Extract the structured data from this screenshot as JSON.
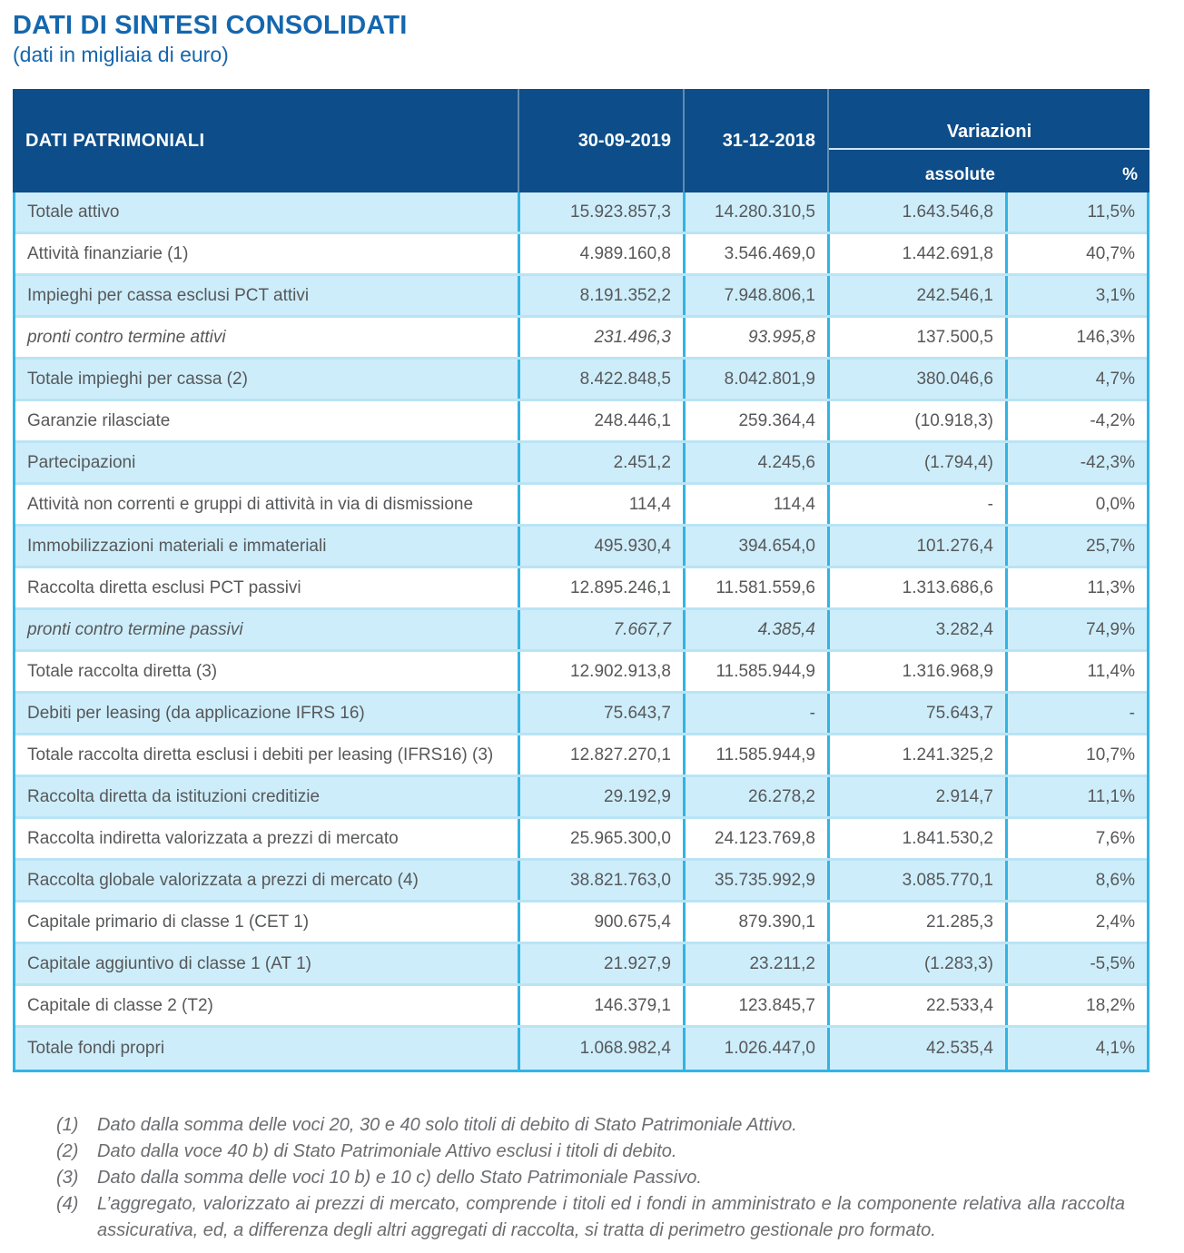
{
  "page": {
    "title": "DATI DI SINTESI CONSOLIDATI",
    "subtitle": "(dati in migliaia di euro)"
  },
  "table": {
    "header": {
      "label": "DATI PATRIMONIALI",
      "col_2019": "30-09-2019",
      "col_2018": "31-12-2018",
      "variazioni": "Variazioni",
      "assolute": "assolute",
      "percent": "%"
    },
    "rows": [
      {
        "label": "Totale attivo",
        "v2019": "15.923.857,3",
        "v2018": "14.280.310,5",
        "assolute": "1.643.546,8",
        "pct": "11,5%",
        "italic": false
      },
      {
        "label": "Attività finanziarie (1)",
        "v2019": "4.989.160,8",
        "v2018": "3.546.469,0",
        "assolute": "1.442.691,8",
        "pct": "40,7%",
        "italic": false
      },
      {
        "label": "Impieghi per cassa esclusi PCT attivi",
        "v2019": "8.191.352,2",
        "v2018": "7.948.806,1",
        "assolute": "242.546,1",
        "pct": "3,1%",
        "italic": false
      },
      {
        "label": "pronti contro termine attivi",
        "v2019": "231.496,3",
        "v2018": "93.995,8",
        "assolute": "137.500,5",
        "pct": "146,3%",
        "italic": true
      },
      {
        "label": "Totale impieghi per cassa (2)",
        "v2019": "8.422.848,5",
        "v2018": "8.042.801,9",
        "assolute": "380.046,6",
        "pct": "4,7%",
        "italic": false
      },
      {
        "label": "Garanzie rilasciate",
        "v2019": "248.446,1",
        "v2018": "259.364,4",
        "assolute": "(10.918,3)",
        "pct": "-4,2%",
        "italic": false
      },
      {
        "label": "Partecipazioni",
        "v2019": "2.451,2",
        "v2018": "4.245,6",
        "assolute": "(1.794,4)",
        "pct": "-42,3%",
        "italic": false
      },
      {
        "label": "Attività non correnti e gruppi di attività in via di dismissione",
        "v2019": "114,4",
        "v2018": "114,4",
        "assolute": "-",
        "pct": "0,0%",
        "italic": false
      },
      {
        "label": "Immobilizzazioni materiali e immateriali",
        "v2019": "495.930,4",
        "v2018": "394.654,0",
        "assolute": "101.276,4",
        "pct": "25,7%",
        "italic": false
      },
      {
        "label": "Raccolta diretta esclusi PCT passivi",
        "v2019": "12.895.246,1",
        "v2018": "11.581.559,6",
        "assolute": "1.313.686,6",
        "pct": "11,3%",
        "italic": false
      },
      {
        "label": "pronti contro termine passivi",
        "v2019": "7.667,7",
        "v2018": "4.385,4",
        "assolute": "3.282,4",
        "pct": "74,9%",
        "italic": true
      },
      {
        "label": "Totale raccolta diretta (3)",
        "v2019": "12.902.913,8",
        "v2018": "11.585.944,9",
        "assolute": "1.316.968,9",
        "pct": "11,4%",
        "italic": false
      },
      {
        "label": "Debiti per leasing (da applicazione IFRS 16)",
        "v2019": "75.643,7",
        "v2018": "-",
        "assolute": "75.643,7",
        "pct": "-",
        "italic": false
      },
      {
        "label": "Totale raccolta diretta esclusi i debiti per leasing (IFRS16) (3)",
        "v2019": "12.827.270,1",
        "v2018": "11.585.944,9",
        "assolute": "1.241.325,2",
        "pct": "10,7%",
        "italic": false
      },
      {
        "label": "Raccolta diretta da istituzioni creditizie",
        "v2019": "29.192,9",
        "v2018": "26.278,2",
        "assolute": "2.914,7",
        "pct": "11,1%",
        "italic": false
      },
      {
        "label": "Raccolta indiretta valorizzata a prezzi di mercato",
        "v2019": "25.965.300,0",
        "v2018": "24.123.769,8",
        "assolute": "1.841.530,2",
        "pct": "7,6%",
        "italic": false
      },
      {
        "label": "Raccolta globale valorizzata a prezzi di mercato (4)",
        "v2019": "38.821.763,0",
        "v2018": "35.735.992,9",
        "assolute": "3.085.770,1",
        "pct": "8,6%",
        "italic": false
      },
      {
        "label": "Capitale primario di classe 1 (CET 1)",
        "v2019": "900.675,4",
        "v2018": "879.390,1",
        "assolute": "21.285,3",
        "pct": "2,4%",
        "italic": false
      },
      {
        "label": "Capitale aggiuntivo di classe 1 (AT 1)",
        "v2019": "21.927,9",
        "v2018": "23.211,2",
        "assolute": "(1.283,3)",
        "pct": "-5,5%",
        "italic": false
      },
      {
        "label": "Capitale di classe 2 (T2)",
        "v2019": "146.379,1",
        "v2018": "123.845,7",
        "assolute": "22.533,4",
        "pct": "18,2%",
        "italic": false
      },
      {
        "label": "Totale fondi propri",
        "v2019": "1.068.982,4",
        "v2018": "1.026.447,0",
        "assolute": "42.535,4",
        "pct": "4,1%",
        "italic": false
      }
    ]
  },
  "footnotes": [
    {
      "num": "(1)",
      "text": "Dato dalla somma delle voci 20, 30 e 40 solo titoli di debito di Stato Patrimoniale Attivo."
    },
    {
      "num": "(2)",
      "text": "Dato dalla voce 40 b) di Stato Patrimoniale Attivo esclusi i titoli di debito."
    },
    {
      "num": "(3)",
      "text": "Dato dalla somma delle voci 10 b) e 10 c) dello Stato Patrimoniale Passivo."
    },
    {
      "num": "(4)",
      "text": "L’aggregato, valorizzato ai prezzi di mercato, comprende i titoli ed i fondi in amministrato e la componente relativa alla raccolta assicurativa, ed, a differenza degli altri aggregati di raccolta, si tratta di perimetro gestionale pro formato."
    }
  ],
  "colors": {
    "header_bg": "#0d4d89",
    "accent_blue": "#1567ae",
    "row_alt": "#cdedfa",
    "border_cyan": "#30b4e6",
    "row_separator": "#b9e4f5",
    "body_text": "#57585a",
    "footnote_text": "#6c6d70"
  }
}
